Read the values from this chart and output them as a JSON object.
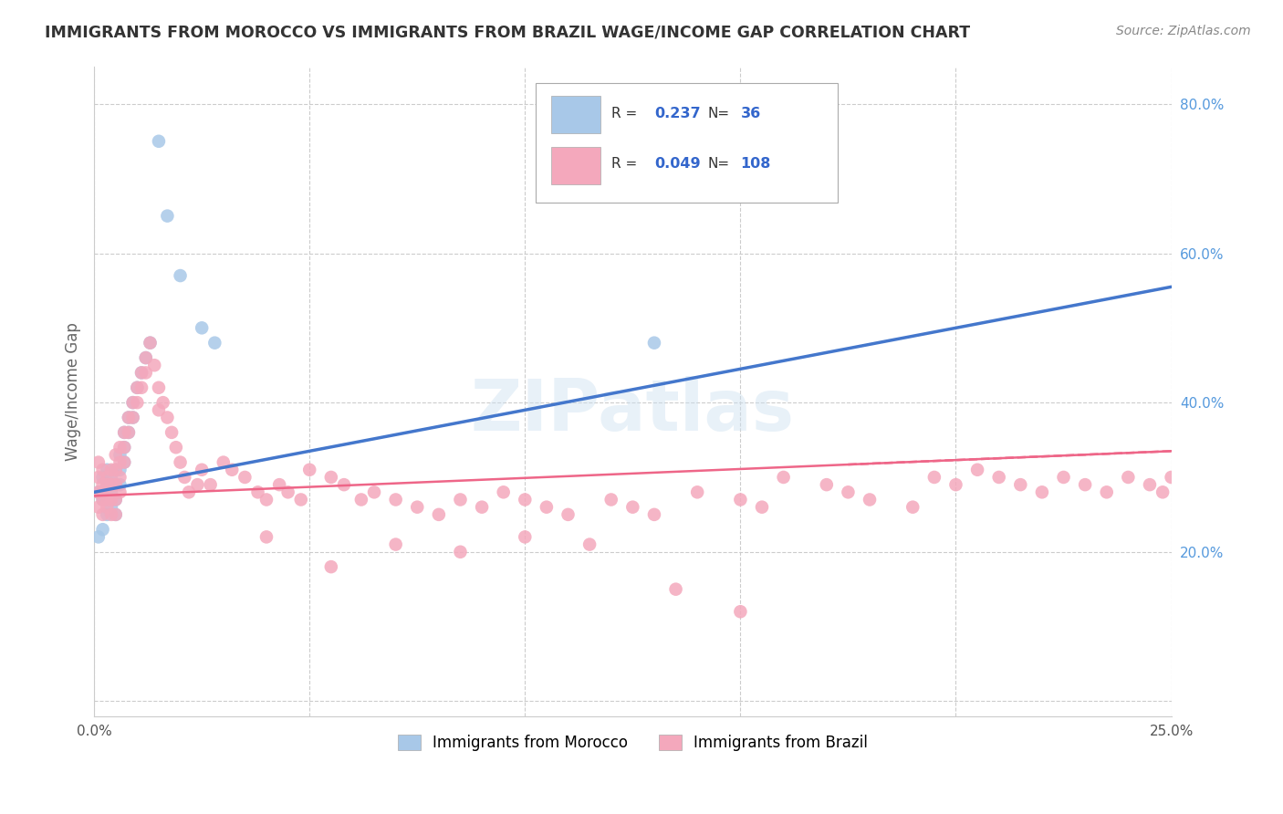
{
  "title": "IMMIGRANTS FROM MOROCCO VS IMMIGRANTS FROM BRAZIL WAGE/INCOME GAP CORRELATION CHART",
  "source": "Source: ZipAtlas.com",
  "ylabel": "Wage/Income Gap",
  "xlim": [
    0.0,
    0.25
  ],
  "ylim": [
    -0.02,
    0.85
  ],
  "morocco_color": "#a8c8e8",
  "brazil_color": "#f4a8bc",
  "morocco_line_color": "#4477cc",
  "brazil_line_color": "#ee6688",
  "morocco_R": 0.237,
  "morocco_N": 36,
  "brazil_R": 0.049,
  "brazil_N": 108,
  "watermark": "ZIPatlas",
  "background_color": "#ffffff",
  "morocco_x": [
    0.001,
    0.001,
    0.002,
    0.002,
    0.002,
    0.003,
    0.003,
    0.003,
    0.003,
    0.004,
    0.004,
    0.004,
    0.005,
    0.005,
    0.005,
    0.005,
    0.006,
    0.006,
    0.006,
    0.007,
    0.007,
    0.007,
    0.008,
    0.008,
    0.009,
    0.009,
    0.01,
    0.011,
    0.012,
    0.013,
    0.015,
    0.017,
    0.02,
    0.025,
    0.028,
    0.13
  ],
  "morocco_y": [
    0.28,
    0.22,
    0.27,
    0.23,
    0.3,
    0.29,
    0.27,
    0.31,
    0.25,
    0.3,
    0.28,
    0.26,
    0.31,
    0.29,
    0.27,
    0.25,
    0.33,
    0.31,
    0.29,
    0.36,
    0.34,
    0.32,
    0.38,
    0.36,
    0.4,
    0.38,
    0.42,
    0.44,
    0.46,
    0.48,
    0.75,
    0.65,
    0.57,
    0.5,
    0.48,
    0.48
  ],
  "brazil_x": [
    0.001,
    0.001,
    0.001,
    0.001,
    0.002,
    0.002,
    0.002,
    0.002,
    0.002,
    0.003,
    0.003,
    0.003,
    0.003,
    0.003,
    0.004,
    0.004,
    0.004,
    0.004,
    0.005,
    0.005,
    0.005,
    0.005,
    0.005,
    0.006,
    0.006,
    0.006,
    0.006,
    0.007,
    0.007,
    0.007,
    0.008,
    0.008,
    0.009,
    0.009,
    0.01,
    0.01,
    0.011,
    0.011,
    0.012,
    0.012,
    0.013,
    0.014,
    0.015,
    0.015,
    0.016,
    0.017,
    0.018,
    0.019,
    0.02,
    0.021,
    0.022,
    0.024,
    0.025,
    0.027,
    0.03,
    0.032,
    0.035,
    0.038,
    0.04,
    0.043,
    0.045,
    0.048,
    0.05,
    0.055,
    0.058,
    0.062,
    0.065,
    0.07,
    0.075,
    0.08,
    0.085,
    0.09,
    0.095,
    0.1,
    0.105,
    0.11,
    0.12,
    0.125,
    0.13,
    0.14,
    0.15,
    0.155,
    0.16,
    0.17,
    0.175,
    0.18,
    0.19,
    0.195,
    0.2,
    0.205,
    0.21,
    0.215,
    0.22,
    0.225,
    0.23,
    0.235,
    0.24,
    0.245,
    0.248,
    0.25,
    0.04,
    0.055,
    0.07,
    0.085,
    0.1,
    0.115,
    0.135,
    0.15
  ],
  "brazil_y": [
    0.28,
    0.26,
    0.3,
    0.32,
    0.28,
    0.27,
    0.29,
    0.31,
    0.25,
    0.3,
    0.28,
    0.26,
    0.29,
    0.27,
    0.31,
    0.29,
    0.27,
    0.25,
    0.33,
    0.31,
    0.29,
    0.27,
    0.25,
    0.34,
    0.32,
    0.3,
    0.28,
    0.36,
    0.34,
    0.32,
    0.38,
    0.36,
    0.4,
    0.38,
    0.42,
    0.4,
    0.44,
    0.42,
    0.46,
    0.44,
    0.48,
    0.45,
    0.42,
    0.39,
    0.4,
    0.38,
    0.36,
    0.34,
    0.32,
    0.3,
    0.28,
    0.29,
    0.31,
    0.29,
    0.32,
    0.31,
    0.3,
    0.28,
    0.27,
    0.29,
    0.28,
    0.27,
    0.31,
    0.3,
    0.29,
    0.27,
    0.28,
    0.27,
    0.26,
    0.25,
    0.27,
    0.26,
    0.28,
    0.27,
    0.26,
    0.25,
    0.27,
    0.26,
    0.25,
    0.28,
    0.27,
    0.26,
    0.3,
    0.29,
    0.28,
    0.27,
    0.26,
    0.3,
    0.29,
    0.31,
    0.3,
    0.29,
    0.28,
    0.3,
    0.29,
    0.28,
    0.3,
    0.29,
    0.28,
    0.3,
    0.22,
    0.18,
    0.21,
    0.2,
    0.22,
    0.21,
    0.15,
    0.12
  ]
}
